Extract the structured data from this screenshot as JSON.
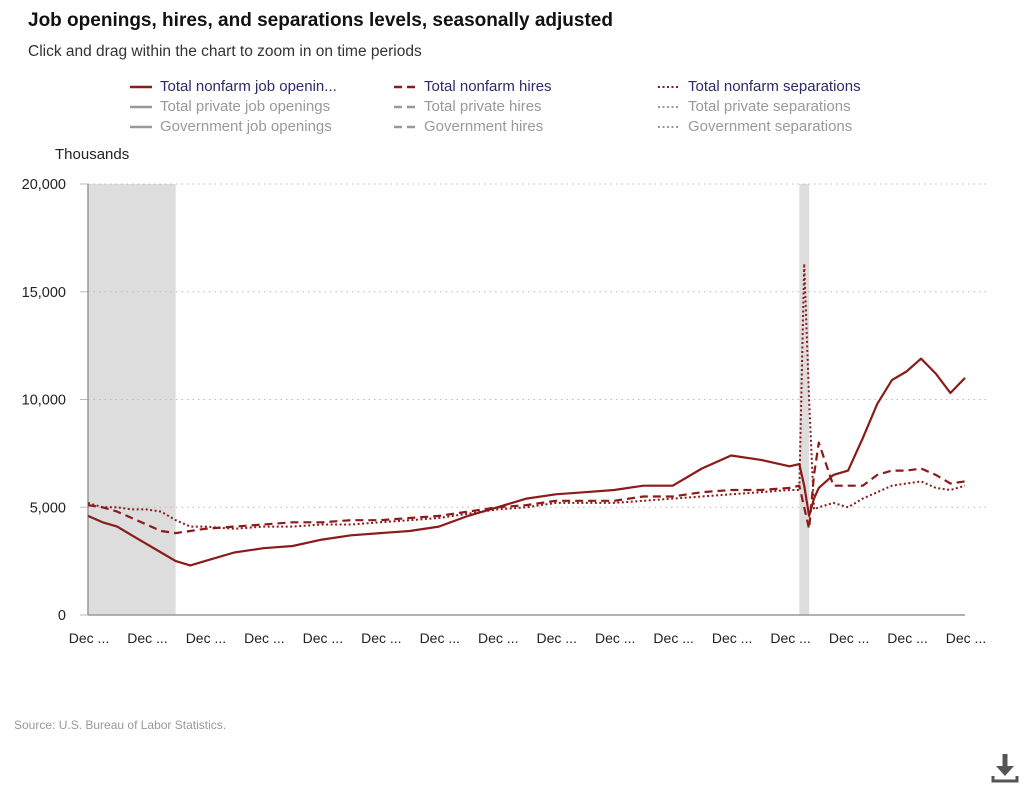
{
  "title": "Job openings, hires, and separations levels, seasonally adjusted",
  "subtitle": "Click and drag within the chart to zoom in on time periods",
  "source": "Source: U.S. Bureau of Labor Statistics.",
  "download_icon": "download-icon",
  "colors": {
    "active_series": "#8b1a1a",
    "inactive_series": "#999999",
    "recession_shading": "#dddddd",
    "legend_active_text": "#2c2a6a"
  },
  "legend": [
    {
      "label": "Total nonfarm job openin...",
      "style": "solid",
      "active": true
    },
    {
      "label": "Total nonfarm hires",
      "style": "dashed",
      "active": true
    },
    {
      "label": "Total nonfarm separations",
      "style": "dotted",
      "active": true
    },
    {
      "label": "Total private job openings",
      "style": "solid",
      "active": false
    },
    {
      "label": "Total private hires",
      "style": "dashed",
      "active": false
    },
    {
      "label": "Total private separations",
      "style": "dotted",
      "active": false
    },
    {
      "label": "Government job openings",
      "style": "solid",
      "active": false
    },
    {
      "label": "Government hires",
      "style": "dashed",
      "active": false
    },
    {
      "label": "Government separations",
      "style": "dotted",
      "active": false
    }
  ],
  "chart_data": {
    "type": "line",
    "title": "Job openings, hires, and separations levels, seasonally adjusted",
    "ylabel": "Thousands",
    "ylim": [
      0,
      20000
    ],
    "yticks": [
      "0",
      "5,000",
      "10,000",
      "15,000",
      "20,000"
    ],
    "ytick_values": [
      0,
      5000,
      10000,
      15000,
      20000
    ],
    "xlim": [
      "2007-12",
      "2022-12"
    ],
    "xtick_values": [
      "2007-12",
      "2008-12",
      "2009-12",
      "2010-12",
      "2011-12",
      "2012-12",
      "2013-12",
      "2014-12",
      "2015-12",
      "2016-12",
      "2017-12",
      "2018-12",
      "2019-12",
      "2020-12",
      "2021-12",
      "2022-12"
    ],
    "xtick_labels": [
      "Dec ...",
      "Dec ...",
      "Dec ...",
      "Dec ...",
      "Dec ...",
      "Dec ...",
      "Dec ...",
      "Dec ...",
      "Dec ...",
      "Dec ...",
      "Dec ...",
      "Dec ...",
      "Dec ...",
      "Dec ...",
      "Dec ...",
      "Dec ..."
    ],
    "grid": "horizontal dotted",
    "legend_position": "top",
    "recessions": [
      [
        "2007-12",
        "2009-06"
      ],
      [
        "2020-02",
        "2020-04"
      ]
    ],
    "x": [
      "2007-12",
      "2008-03",
      "2008-06",
      "2008-09",
      "2008-12",
      "2009-03",
      "2009-06",
      "2009-09",
      "2009-12",
      "2010-06",
      "2010-12",
      "2011-06",
      "2011-12",
      "2012-06",
      "2012-12",
      "2013-06",
      "2013-12",
      "2014-06",
      "2014-12",
      "2015-06",
      "2015-12",
      "2016-06",
      "2016-12",
      "2017-06",
      "2017-12",
      "2018-06",
      "2018-12",
      "2019-06",
      "2019-12",
      "2020-02",
      "2020-03",
      "2020-04",
      "2020-05",
      "2020-06",
      "2020-09",
      "2020-12",
      "2021-03",
      "2021-06",
      "2021-09",
      "2021-12",
      "2022-03",
      "2022-06",
      "2022-09",
      "2022-12"
    ],
    "series": [
      {
        "name": "Total nonfarm job openin...",
        "style": "solid",
        "values": [
          4600,
          4300,
          4100,
          3700,
          3300,
          2900,
          2500,
          2300,
          2500,
          2900,
          3100,
          3200,
          3500,
          3700,
          3800,
          3900,
          4100,
          4600,
          5000,
          5400,
          5600,
          5700,
          5800,
          6000,
          6000,
          6800,
          7400,
          7200,
          6900,
          7000,
          6000,
          4600,
          5400,
          5900,
          6500,
          6700,
          8200,
          9800,
          10900,
          11300,
          11900,
          11200,
          10300,
          11000
        ]
      },
      {
        "name": "Total nonfarm hires",
        "style": "dashed",
        "values": [
          5100,
          5000,
          4800,
          4500,
          4200,
          3900,
          3800,
          3900,
          4000,
          4100,
          4200,
          4300,
          4300,
          4400,
          4400,
          4500,
          4600,
          4800,
          5000,
          5100,
          5300,
          5300,
          5300,
          5500,
          5500,
          5700,
          5800,
          5800,
          5900,
          6000,
          5000,
          4000,
          6500,
          8000,
          6000,
          6000,
          6000,
          6500,
          6700,
          6700,
          6800,
          6500,
          6100,
          6200
        ]
      },
      {
        "name": "Total nonfarm separations",
        "style": "dotted",
        "values": [
          5200,
          5000,
          5000,
          4900,
          4900,
          4800,
          4400,
          4100,
          4100,
          4000,
          4100,
          4100,
          4200,
          4200,
          4300,
          4400,
          4500,
          4700,
          4900,
          5000,
          5200,
          5200,
          5200,
          5300,
          5400,
          5500,
          5600,
          5700,
          5800,
          5800,
          16300,
          10000,
          4900,
          5000,
          5200,
          5000,
          5400,
          5700,
          6000,
          6100,
          6200,
          5900,
          5800,
          6000
        ]
      }
    ]
  }
}
